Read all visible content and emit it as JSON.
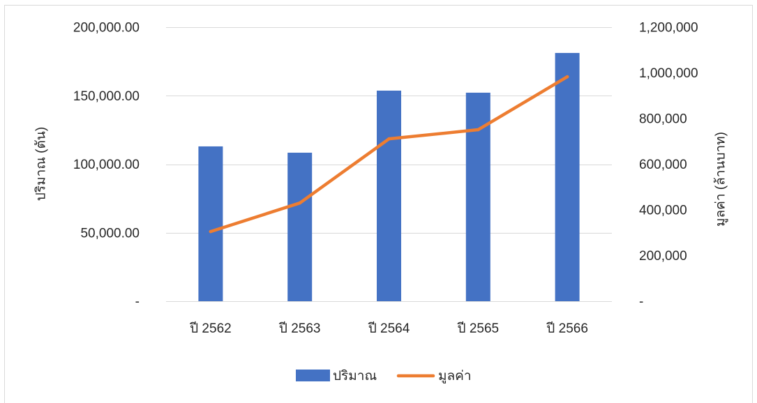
{
  "chart_data": {
    "type": "bar",
    "categories": [
      "ปี 2562",
      "ปี 2563",
      "ปี 2564",
      "ปี 2565",
      "ปี 2566"
    ],
    "series": [
      {
        "name": "ปริมาณ",
        "type": "bar",
        "y_axis": "left",
        "color": "#4472C4",
        "values": [
          113000,
          108400,
          153700,
          152200,
          181200
        ]
      },
      {
        "name": "มูลค่า",
        "type": "line",
        "y_axis": "right",
        "color": "#ED7D31",
        "values": [
          305000,
          430000,
          711000,
          751000,
          983000
        ]
      }
    ],
    "y_left": {
      "label": "ปริมาณ (ตัน)",
      "range": [
        0,
        200000
      ],
      "ticks": [
        {
          "value": 0,
          "label": "-"
        },
        {
          "value": 50000,
          "label": "50,000.00"
        },
        {
          "value": 100000,
          "label": "100,000.00"
        },
        {
          "value": 150000,
          "label": "150,000.00"
        },
        {
          "value": 200000,
          "label": "200,000.00"
        }
      ]
    },
    "y_right": {
      "label": "มูลค่า (ล้านบาท)",
      "range": [
        0,
        1200000
      ],
      "ticks": [
        {
          "value": 0,
          "label": "-"
        },
        {
          "value": 200000,
          "label": "200,000"
        },
        {
          "value": 400000,
          "label": "400,000"
        },
        {
          "value": 600000,
          "label": "600,000"
        },
        {
          "value": 800000,
          "label": "800,000"
        },
        {
          "value": 1000000,
          "label": "1,000,000"
        },
        {
          "value": 1200000,
          "label": "1,200,000"
        }
      ]
    },
    "grid": true,
    "legend_position": "bottom"
  },
  "colors": {
    "gridline": "#D9D9D9",
    "border": "#D9D9D9",
    "text": "#262626"
  }
}
